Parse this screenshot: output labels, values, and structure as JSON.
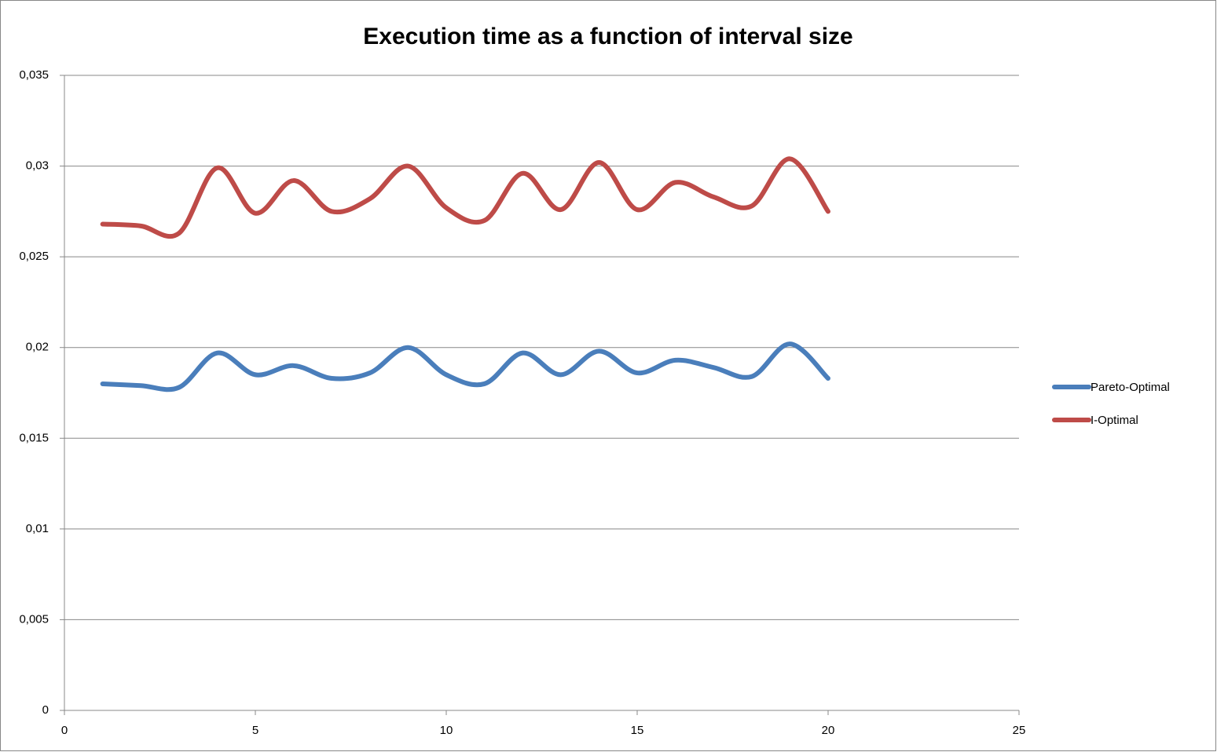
{
  "chart_data": {
    "type": "line",
    "title": "Execution time as a function of interval size",
    "x": [
      1,
      2,
      3,
      4,
      5,
      6,
      7,
      8,
      9,
      10,
      11,
      12,
      13,
      14,
      15,
      16,
      17,
      18,
      19,
      20
    ],
    "series": [
      {
        "name": "Pareto-Optimal",
        "color": "#4a7ebb",
        "values": [
          0.018,
          0.0179,
          0.0178,
          0.0197,
          0.0185,
          0.019,
          0.0183,
          0.0186,
          0.02,
          0.0185,
          0.018,
          0.0197,
          0.0185,
          0.0198,
          0.0186,
          0.0193,
          0.0189,
          0.0184,
          0.0202,
          0.0183
        ]
      },
      {
        "name": "I-Optimal",
        "color": "#be4b48",
        "values": [
          0.0268,
          0.0267,
          0.0263,
          0.0299,
          0.0274,
          0.0292,
          0.0275,
          0.0282,
          0.03,
          0.0277,
          0.027,
          0.0296,
          0.0276,
          0.0302,
          0.0276,
          0.0291,
          0.0283,
          0.0278,
          0.0304,
          0.0275
        ]
      }
    ],
    "xlim": [
      0,
      25
    ],
    "xticks": [
      0,
      5,
      10,
      15,
      20,
      25
    ],
    "ylim": [
      0,
      0.035
    ],
    "yticks": [
      0,
      {
        "value": 0.005,
        "label": "0,005"
      },
      {
        "value": 0.01,
        "label": "0,01"
      },
      {
        "value": 0.015,
        "label": "0,015"
      },
      {
        "value": 0.02,
        "label": "0,02"
      },
      {
        "value": 0.025,
        "label": "0,025"
      },
      {
        "value": 0.03,
        "label": "0,03"
      },
      {
        "value": 0.035,
        "label": "0,035"
      }
    ],
    "grid": true,
    "smooth": true,
    "legend": "right"
  }
}
